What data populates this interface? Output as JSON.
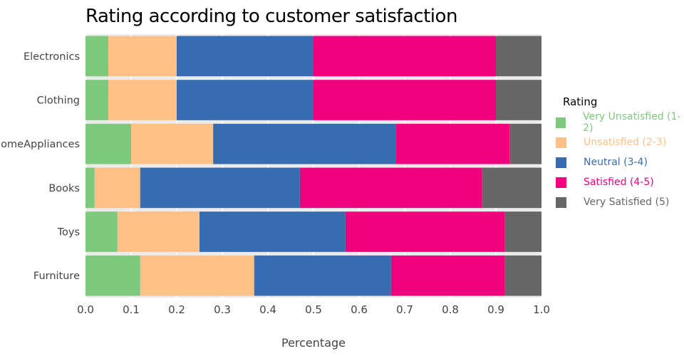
{
  "chart_data": {
    "type": "bar",
    "orientation": "horizontal",
    "stacked": true,
    "title": "Rating according to customer satisfaction",
    "xlabel": "Percentage",
    "ylabel": "",
    "xlim": [
      0,
      1
    ],
    "xticks": [
      "0.0",
      "0.1",
      "0.2",
      "0.3",
      "0.4",
      "0.5",
      "0.6",
      "0.7",
      "0.8",
      "0.9",
      "1.0"
    ],
    "categories": [
      "Electronics",
      "Clothing",
      "HomeAppliances",
      "Books",
      "Toys",
      "Furniture"
    ],
    "series": [
      {
        "name": "Very Unsatisfied (1-2)",
        "color": "#7fc97f",
        "values": [
          0.05,
          0.05,
          0.1,
          0.02,
          0.07,
          0.12
        ]
      },
      {
        "name": "Unsatisfied (2-3)",
        "color": "#fdc086",
        "values": [
          0.15,
          0.15,
          0.18,
          0.1,
          0.18,
          0.25
        ]
      },
      {
        "name": "Neutral (3-4)",
        "color": "#386cb0",
        "values": [
          0.3,
          0.3,
          0.4,
          0.35,
          0.32,
          0.3
        ]
      },
      {
        "name": "Satisfied (4-5)",
        "color": "#f0027f",
        "values": [
          0.4,
          0.4,
          0.25,
          0.4,
          0.35,
          0.25
        ]
      },
      {
        "name": "Very Satisfied (5)",
        "color": "#666666",
        "values": [
          0.1,
          0.1,
          0.07,
          0.13,
          0.08,
          0.08
        ]
      }
    ],
    "legend": {
      "title": "Rating",
      "position": "right"
    },
    "grid": true,
    "background": "#ebebeb"
  }
}
